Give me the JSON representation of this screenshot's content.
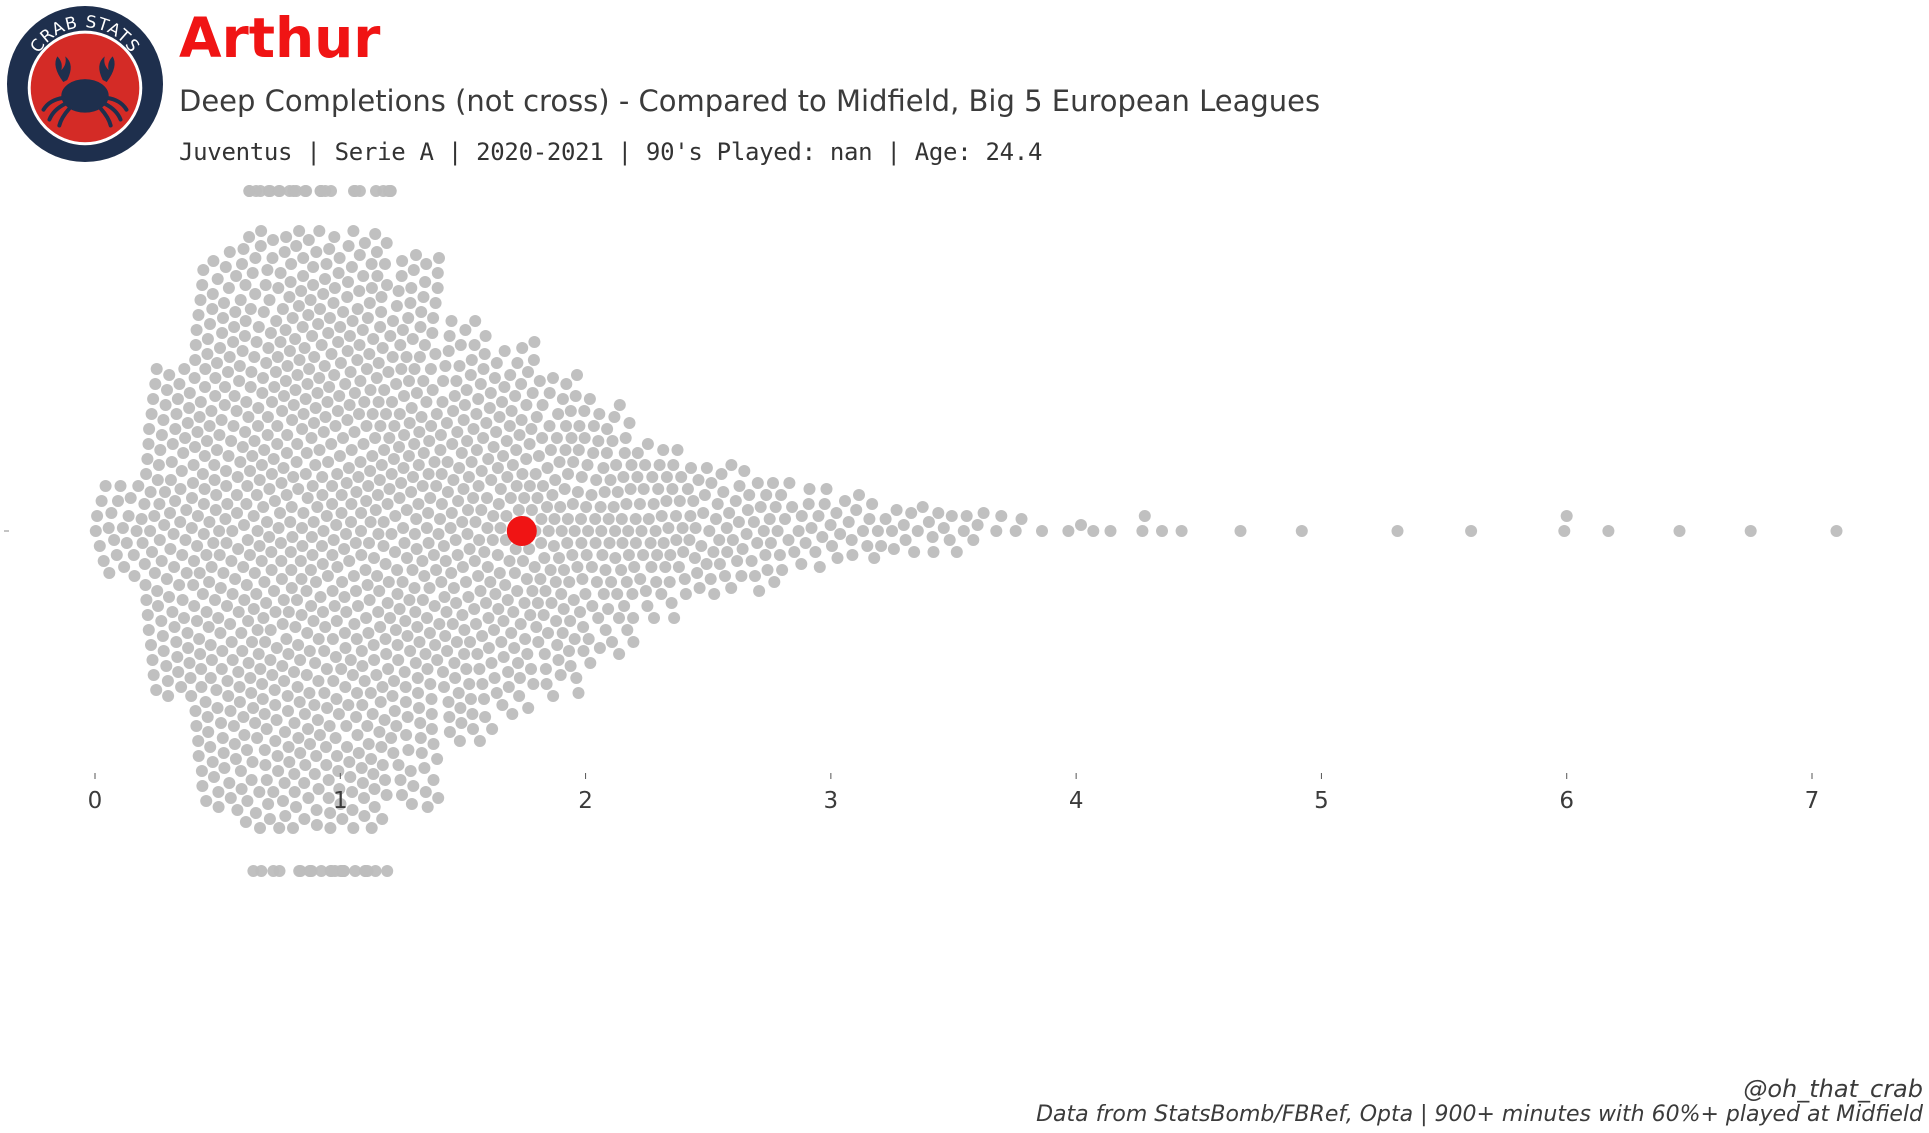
{
  "header": {
    "logo_text": "CRAB STATS",
    "player_name": "Arthur",
    "subtitle": "Deep Completions (not cross) - Compared to Midfield, Big 5 European Leagues",
    "info_line": "Juventus  | Serie A | 2020-2021 | 90's Played: nan | Age: 24.4"
  },
  "footer": {
    "credit": "@oh_that_crab",
    "source": "Data from StatsBomb/FBRef, Opta | 900+ minutes with 60%+ played at Midfield"
  },
  "colors": {
    "title": "#f01414",
    "highlight": "#f01414",
    "population": "#bdbdbd",
    "logo_outer": "#1e2f4d",
    "logo_inner": "#d42b26"
  },
  "chart_data": {
    "type": "scatter",
    "style": "beeswarm",
    "xlim": [
      0,
      7.2
    ],
    "x_ticks": [
      "0",
      "1",
      "2",
      "3",
      "4",
      "5",
      "6",
      "7"
    ],
    "highlight": {
      "name": "Arthur",
      "value": 1.74
    },
    "distribution": [
      {
        "range": [
          0.0,
          0.2
        ],
        "count": 24
      },
      {
        "range": [
          0.2,
          0.4
        ],
        "count": 88
      },
      {
        "range": [
          0.4,
          0.6
        ],
        "count": 150
      },
      {
        "range": [
          0.6,
          0.8
        ],
        "count": 178
      },
      {
        "range": [
          0.8,
          1.0
        ],
        "count": 186
      },
      {
        "range": [
          1.0,
          1.2
        ],
        "count": 180
      },
      {
        "range": [
          1.2,
          1.4
        ],
        "count": 150
      },
      {
        "range": [
          1.4,
          1.6
        ],
        "count": 115
      },
      {
        "range": [
          1.6,
          1.8
        ],
        "count": 100
      },
      {
        "range": [
          1.8,
          2.0
        ],
        "count": 86
      },
      {
        "range": [
          2.0,
          2.2
        ],
        "count": 66
      },
      {
        "range": [
          2.2,
          2.4
        ],
        "count": 46
      },
      {
        "range": [
          2.4,
          2.6
        ],
        "count": 34
      },
      {
        "range": [
          2.6,
          2.8
        ],
        "count": 30
      },
      {
        "range": [
          2.8,
          3.0
        ],
        "count": 20
      },
      {
        "range": [
          3.0,
          3.2
        ],
        "count": 16
      },
      {
        "range": [
          3.2,
          3.4
        ],
        "count": 12
      },
      {
        "range": [
          3.4,
          3.6
        ],
        "count": 11
      },
      {
        "range": [
          3.6,
          3.8
        ],
        "count": 5
      },
      {
        "range": [
          3.8,
          4.0
        ],
        "count": 2
      }
    ],
    "outliers": [
      4.02,
      4.07,
      4.14,
      4.27,
      4.28,
      4.35,
      4.43,
      4.67,
      4.92,
      5.31,
      5.61,
      5.99,
      6.0,
      6.17,
      6.46,
      6.75,
      7.1
    ]
  }
}
